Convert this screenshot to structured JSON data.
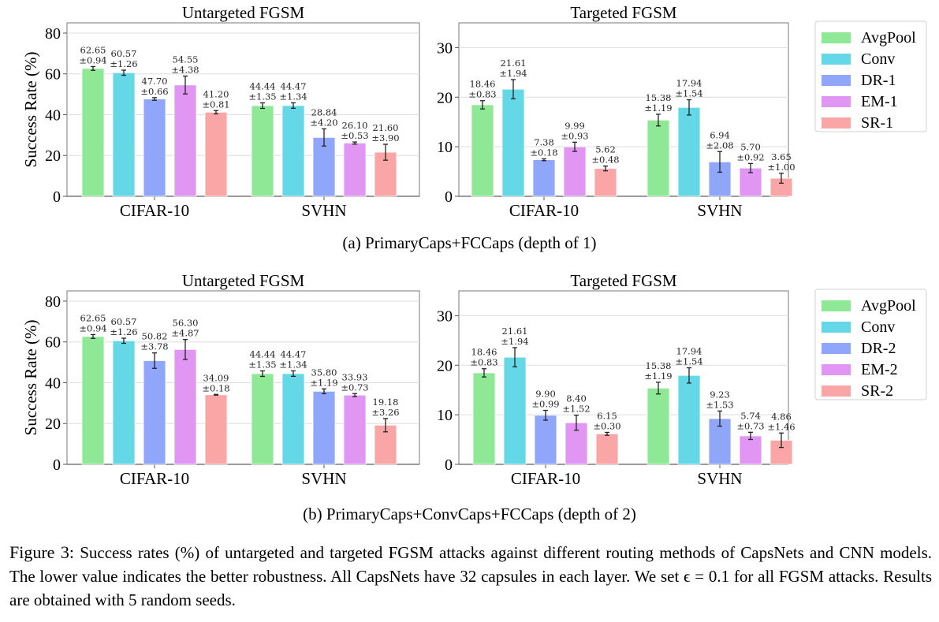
{
  "figure": {
    "subcaption_a": "(a) PrimaryCaps+FCCaps (depth of 1)",
    "subcaption_b": "(b) PrimaryCaps+ConvCaps+FCCaps (depth of 2)",
    "caption_label": "Figure 3:",
    "caption_text": " Success rates (%) of untargeted and targeted FGSM attacks against different routing methods of CapsNets and CNN models. The lower value indicates the better robustness. All CapsNets have 32 capsules in each layer. We set ϵ = 0.1 for all FGSM attacks. Results are obtained with 5 random seeds."
  },
  "colors": {
    "AvgPool": "#8ee895",
    "Conv": "#64d8e6",
    "DR": "#8fa6fb",
    "EM": "#e096f2",
    "SR": "#fba6a6"
  },
  "chart_data": [
    {
      "type": "bar",
      "title": "Untargeted FGSM",
      "row": "a",
      "ylabel": "Success Rate (%)",
      "xlabel": "",
      "ylim": [
        0,
        85
      ],
      "yticks": [
        0,
        20,
        40,
        60,
        80
      ],
      "grid": true,
      "categories": [
        "CIFAR-10",
        "SVHN"
      ],
      "series": [
        {
          "name": "AvgPool",
          "values": [
            62.65,
            44.44
          ],
          "errors": [
            0.94,
            1.35
          ]
        },
        {
          "name": "Conv",
          "values": [
            60.57,
            44.47
          ],
          "errors": [
            1.26,
            1.34
          ]
        },
        {
          "name": "DR-1",
          "values": [
            47.7,
            28.84
          ],
          "errors": [
            0.66,
            4.2
          ]
        },
        {
          "name": "EM-1",
          "values": [
            54.55,
            26.1
          ],
          "errors": [
            4.38,
            0.53
          ]
        },
        {
          "name": "SR-1",
          "values": [
            41.2,
            21.6
          ],
          "errors": [
            0.81,
            3.9
          ]
        }
      ]
    },
    {
      "type": "bar",
      "title": "Targeted FGSM",
      "row": "a",
      "ylabel": "",
      "xlabel": "",
      "ylim": [
        0,
        35
      ],
      "yticks": [
        0,
        10,
        20,
        30
      ],
      "grid": true,
      "legend": "right",
      "categories": [
        "CIFAR-10",
        "SVHN"
      ],
      "series": [
        {
          "name": "AvgPool",
          "values": [
            18.46,
            15.38
          ],
          "errors": [
            0.83,
            1.19
          ]
        },
        {
          "name": "Conv",
          "values": [
            21.61,
            17.94
          ],
          "errors": [
            1.94,
            1.54
          ]
        },
        {
          "name": "DR-1",
          "values": [
            7.38,
            6.94
          ],
          "errors": [
            0.18,
            2.08
          ]
        },
        {
          "name": "EM-1",
          "values": [
            9.99,
            5.7
          ],
          "errors": [
            0.93,
            0.92
          ]
        },
        {
          "name": "SR-1",
          "values": [
            5.62,
            3.65
          ],
          "errors": [
            0.48,
            1.0
          ]
        }
      ]
    },
    {
      "type": "bar",
      "title": "Untargeted FGSM",
      "row": "b",
      "ylabel": "Success Rate (%)",
      "xlabel": "",
      "ylim": [
        0,
        85
      ],
      "yticks": [
        0,
        20,
        40,
        60,
        80
      ],
      "grid": true,
      "categories": [
        "CIFAR-10",
        "SVHN"
      ],
      "series": [
        {
          "name": "AvgPool",
          "values": [
            62.65,
            44.44
          ],
          "errors": [
            0.94,
            1.35
          ]
        },
        {
          "name": "Conv",
          "values": [
            60.57,
            44.47
          ],
          "errors": [
            1.26,
            1.34
          ]
        },
        {
          "name": "DR-2",
          "values": [
            50.82,
            35.8
          ],
          "errors": [
            3.78,
            1.19
          ]
        },
        {
          "name": "EM-2",
          "values": [
            56.3,
            33.93
          ],
          "errors": [
            4.87,
            0.73
          ]
        },
        {
          "name": "SR-2",
          "values": [
            34.09,
            19.18
          ],
          "errors": [
            0.18,
            3.26
          ]
        }
      ]
    },
    {
      "type": "bar",
      "title": "Targeted FGSM",
      "row": "b",
      "ylabel": "",
      "xlabel": "",
      "ylim": [
        0,
        35
      ],
      "yticks": [
        0,
        10,
        20,
        30
      ],
      "grid": true,
      "legend": "right",
      "categories": [
        "CIFAR-10",
        "SVHN"
      ],
      "series": [
        {
          "name": "AvgPool",
          "values": [
            18.46,
            15.38
          ],
          "errors": [
            0.83,
            1.19
          ]
        },
        {
          "name": "Conv",
          "values": [
            21.61,
            17.94
          ],
          "errors": [
            1.94,
            1.54
          ]
        },
        {
          "name": "DR-2",
          "values": [
            9.9,
            9.23
          ],
          "errors": [
            0.99,
            1.53
          ]
        },
        {
          "name": "EM-2",
          "values": [
            8.4,
            5.74
          ],
          "errors": [
            1.52,
            0.73
          ]
        },
        {
          "name": "SR-2",
          "values": [
            6.15,
            4.86
          ],
          "errors": [
            0.3,
            1.46
          ]
        }
      ]
    }
  ]
}
